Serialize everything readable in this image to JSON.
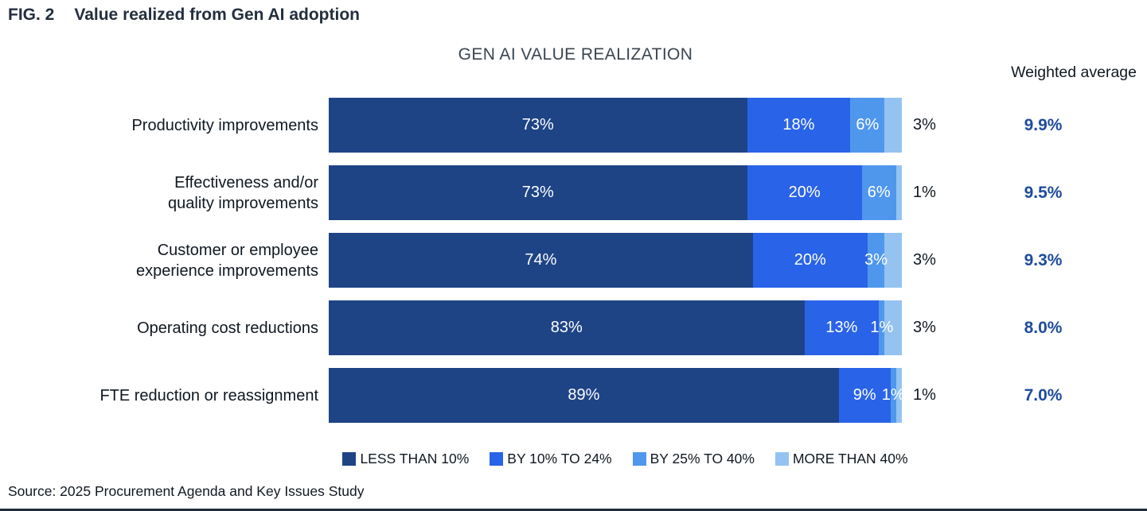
{
  "figure": {
    "tag": "FIG. 2",
    "title": "Value realized from Gen AI adoption"
  },
  "chart": {
    "weighted_average_header": "Weighted average"
  },
  "chart_data": {
    "type": "bar",
    "stacked": true,
    "orientation": "horizontal",
    "title": "GEN AI VALUE REALIZATION",
    "xlim": [
      0,
      100
    ],
    "legend_position": "bottom",
    "categories": [
      "Productivity improvements",
      "Effectiveness and/or quality improvements",
      "Customer or employee experience improvements",
      "Operating cost reductions",
      "FTE reduction or reassignment"
    ],
    "category_lines": [
      [
        "Productivity improvements"
      ],
      [
        "Effectiveness and/or",
        "quality improvements"
      ],
      [
        "Customer or employee",
        "experience improvements"
      ],
      [
        "Operating cost reductions"
      ],
      [
        "FTE reduction or reassignment"
      ]
    ],
    "series": [
      {
        "name": "LESS THAN 10%",
        "color": "#1E4486",
        "values": [
          73,
          73,
          74,
          83,
          89
        ]
      },
      {
        "name": "BY 10% TO 24%",
        "color": "#2963E8",
        "values": [
          18,
          20,
          20,
          13,
          9
        ]
      },
      {
        "name": "BY 25% TO 40%",
        "color": "#4F97ED",
        "values": [
          6,
          6,
          3,
          1,
          1
        ]
      },
      {
        "name": "MORE THAN 40%",
        "color": "#94C3F2",
        "values": [
          3,
          1,
          3,
          3,
          1
        ]
      }
    ],
    "weighted_averages": [
      "9.9%",
      "9.5%",
      "9.3%",
      "8.0%",
      "7.0%"
    ],
    "weighted_average_color": "#1D4C9C"
  },
  "source": "Source: 2025 Procurement Agenda and Key Issues Study"
}
